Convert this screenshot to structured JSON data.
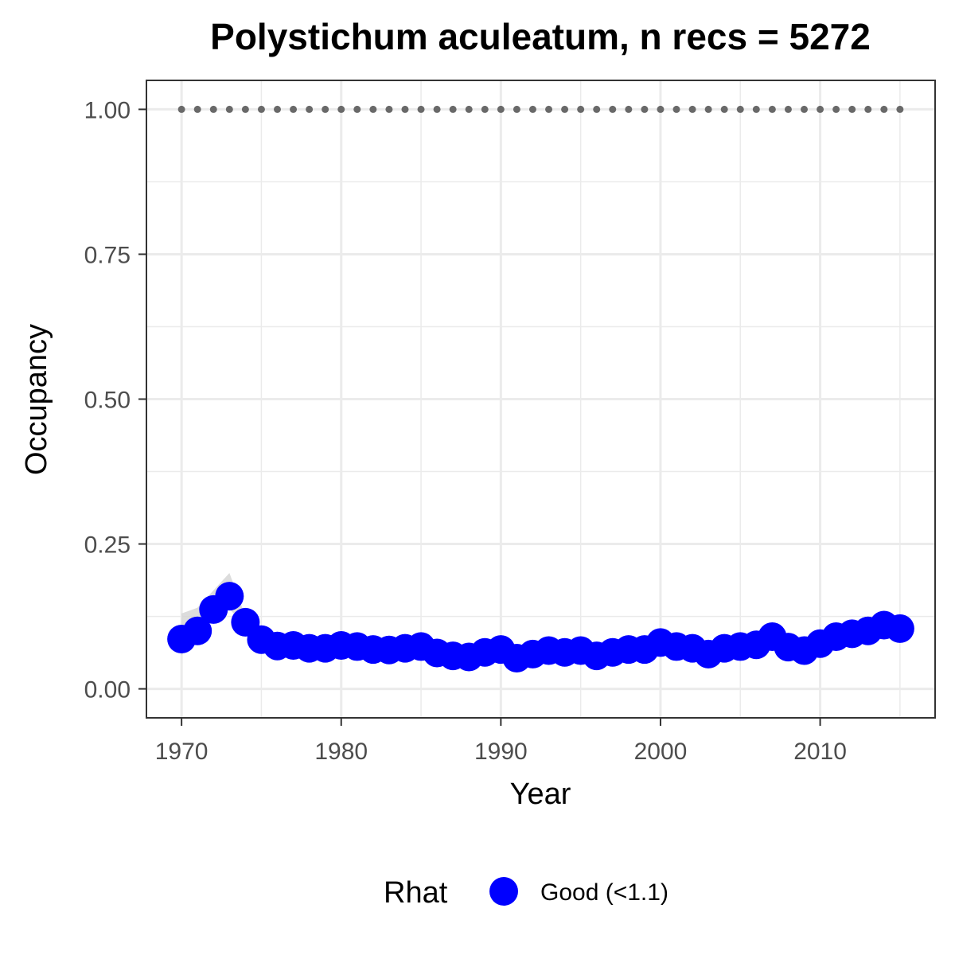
{
  "chart_data": {
    "type": "line",
    "title": "Polystichum aculeatum, n recs = 5272",
    "xlabel": "Year",
    "ylabel": "Occupancy",
    "xlim": [
      1967.8,
      2017.2
    ],
    "ylim": [
      -0.05,
      1.05
    ],
    "x_ticks": [
      1970,
      1980,
      1990,
      2000,
      2010
    ],
    "x_tick_labels": [
      "1970",
      "1980",
      "1990",
      "2000",
      "2010"
    ],
    "y_ticks": [
      0,
      0.25,
      0.5,
      0.75,
      1
    ],
    "y_tick_labels": [
      "0.00",
      "0.25",
      "0.50",
      "0.75",
      "1.00"
    ],
    "grid": true,
    "legend": {
      "title": "Rhat",
      "position": "bottom",
      "entries": [
        {
          "label": "Good (<1.1)",
          "color": "#0000ff"
        }
      ]
    },
    "colors": {
      "points": "#0000ff",
      "ribbon": "#d3d3d3",
      "reference_line": "#696969",
      "grid": "#ebebeb",
      "panel_border": "#333333"
    },
    "reference_line": {
      "y": 1.0,
      "style": "dotted"
    },
    "series": [
      {
        "name": "Good (<1.1)",
        "x": [
          1970,
          1971,
          1972,
          1973,
          1974,
          1975,
          1976,
          1977,
          1978,
          1979,
          1980,
          1981,
          1982,
          1983,
          1984,
          1985,
          1986,
          1987,
          1988,
          1989,
          1990,
          1991,
          1992,
          1993,
          1994,
          1995,
          1996,
          1997,
          1998,
          1999,
          2000,
          2001,
          2002,
          2003,
          2004,
          2005,
          2006,
          2007,
          2008,
          2009,
          2010,
          2011,
          2012,
          2013,
          2014,
          2015
        ],
        "y": [
          0.086,
          0.1,
          0.137,
          0.16,
          0.115,
          0.085,
          0.074,
          0.075,
          0.07,
          0.07,
          0.075,
          0.073,
          0.068,
          0.067,
          0.07,
          0.073,
          0.062,
          0.057,
          0.055,
          0.063,
          0.068,
          0.053,
          0.06,
          0.066,
          0.063,
          0.066,
          0.057,
          0.063,
          0.068,
          0.068,
          0.08,
          0.073,
          0.07,
          0.06,
          0.07,
          0.073,
          0.076,
          0.09,
          0.072,
          0.066,
          0.078,
          0.09,
          0.095,
          0.1,
          0.11,
          0.104
        ],
        "lower": [
          0.058,
          0.092,
          0.128,
          0.138,
          0.108,
          0.08,
          0.07,
          0.07,
          0.065,
          0.065,
          0.07,
          0.068,
          0.063,
          0.062,
          0.065,
          0.068,
          0.057,
          0.052,
          0.05,
          0.058,
          0.063,
          0.048,
          0.055,
          0.061,
          0.058,
          0.061,
          0.052,
          0.058,
          0.063,
          0.063,
          0.075,
          0.068,
          0.065,
          0.055,
          0.065,
          0.068,
          0.071,
          0.085,
          0.067,
          0.061,
          0.073,
          0.085,
          0.09,
          0.095,
          0.105,
          0.099
        ],
        "upper": [
          0.13,
          0.14,
          0.17,
          0.2,
          0.125,
          0.09,
          0.078,
          0.08,
          0.075,
          0.075,
          0.08,
          0.078,
          0.073,
          0.072,
          0.075,
          0.078,
          0.067,
          0.062,
          0.06,
          0.068,
          0.073,
          0.058,
          0.065,
          0.071,
          0.068,
          0.071,
          0.062,
          0.068,
          0.073,
          0.073,
          0.085,
          0.078,
          0.075,
          0.065,
          0.075,
          0.078,
          0.081,
          0.095,
          0.077,
          0.071,
          0.083,
          0.095,
          0.1,
          0.105,
          0.115,
          0.109
        ]
      }
    ]
  }
}
